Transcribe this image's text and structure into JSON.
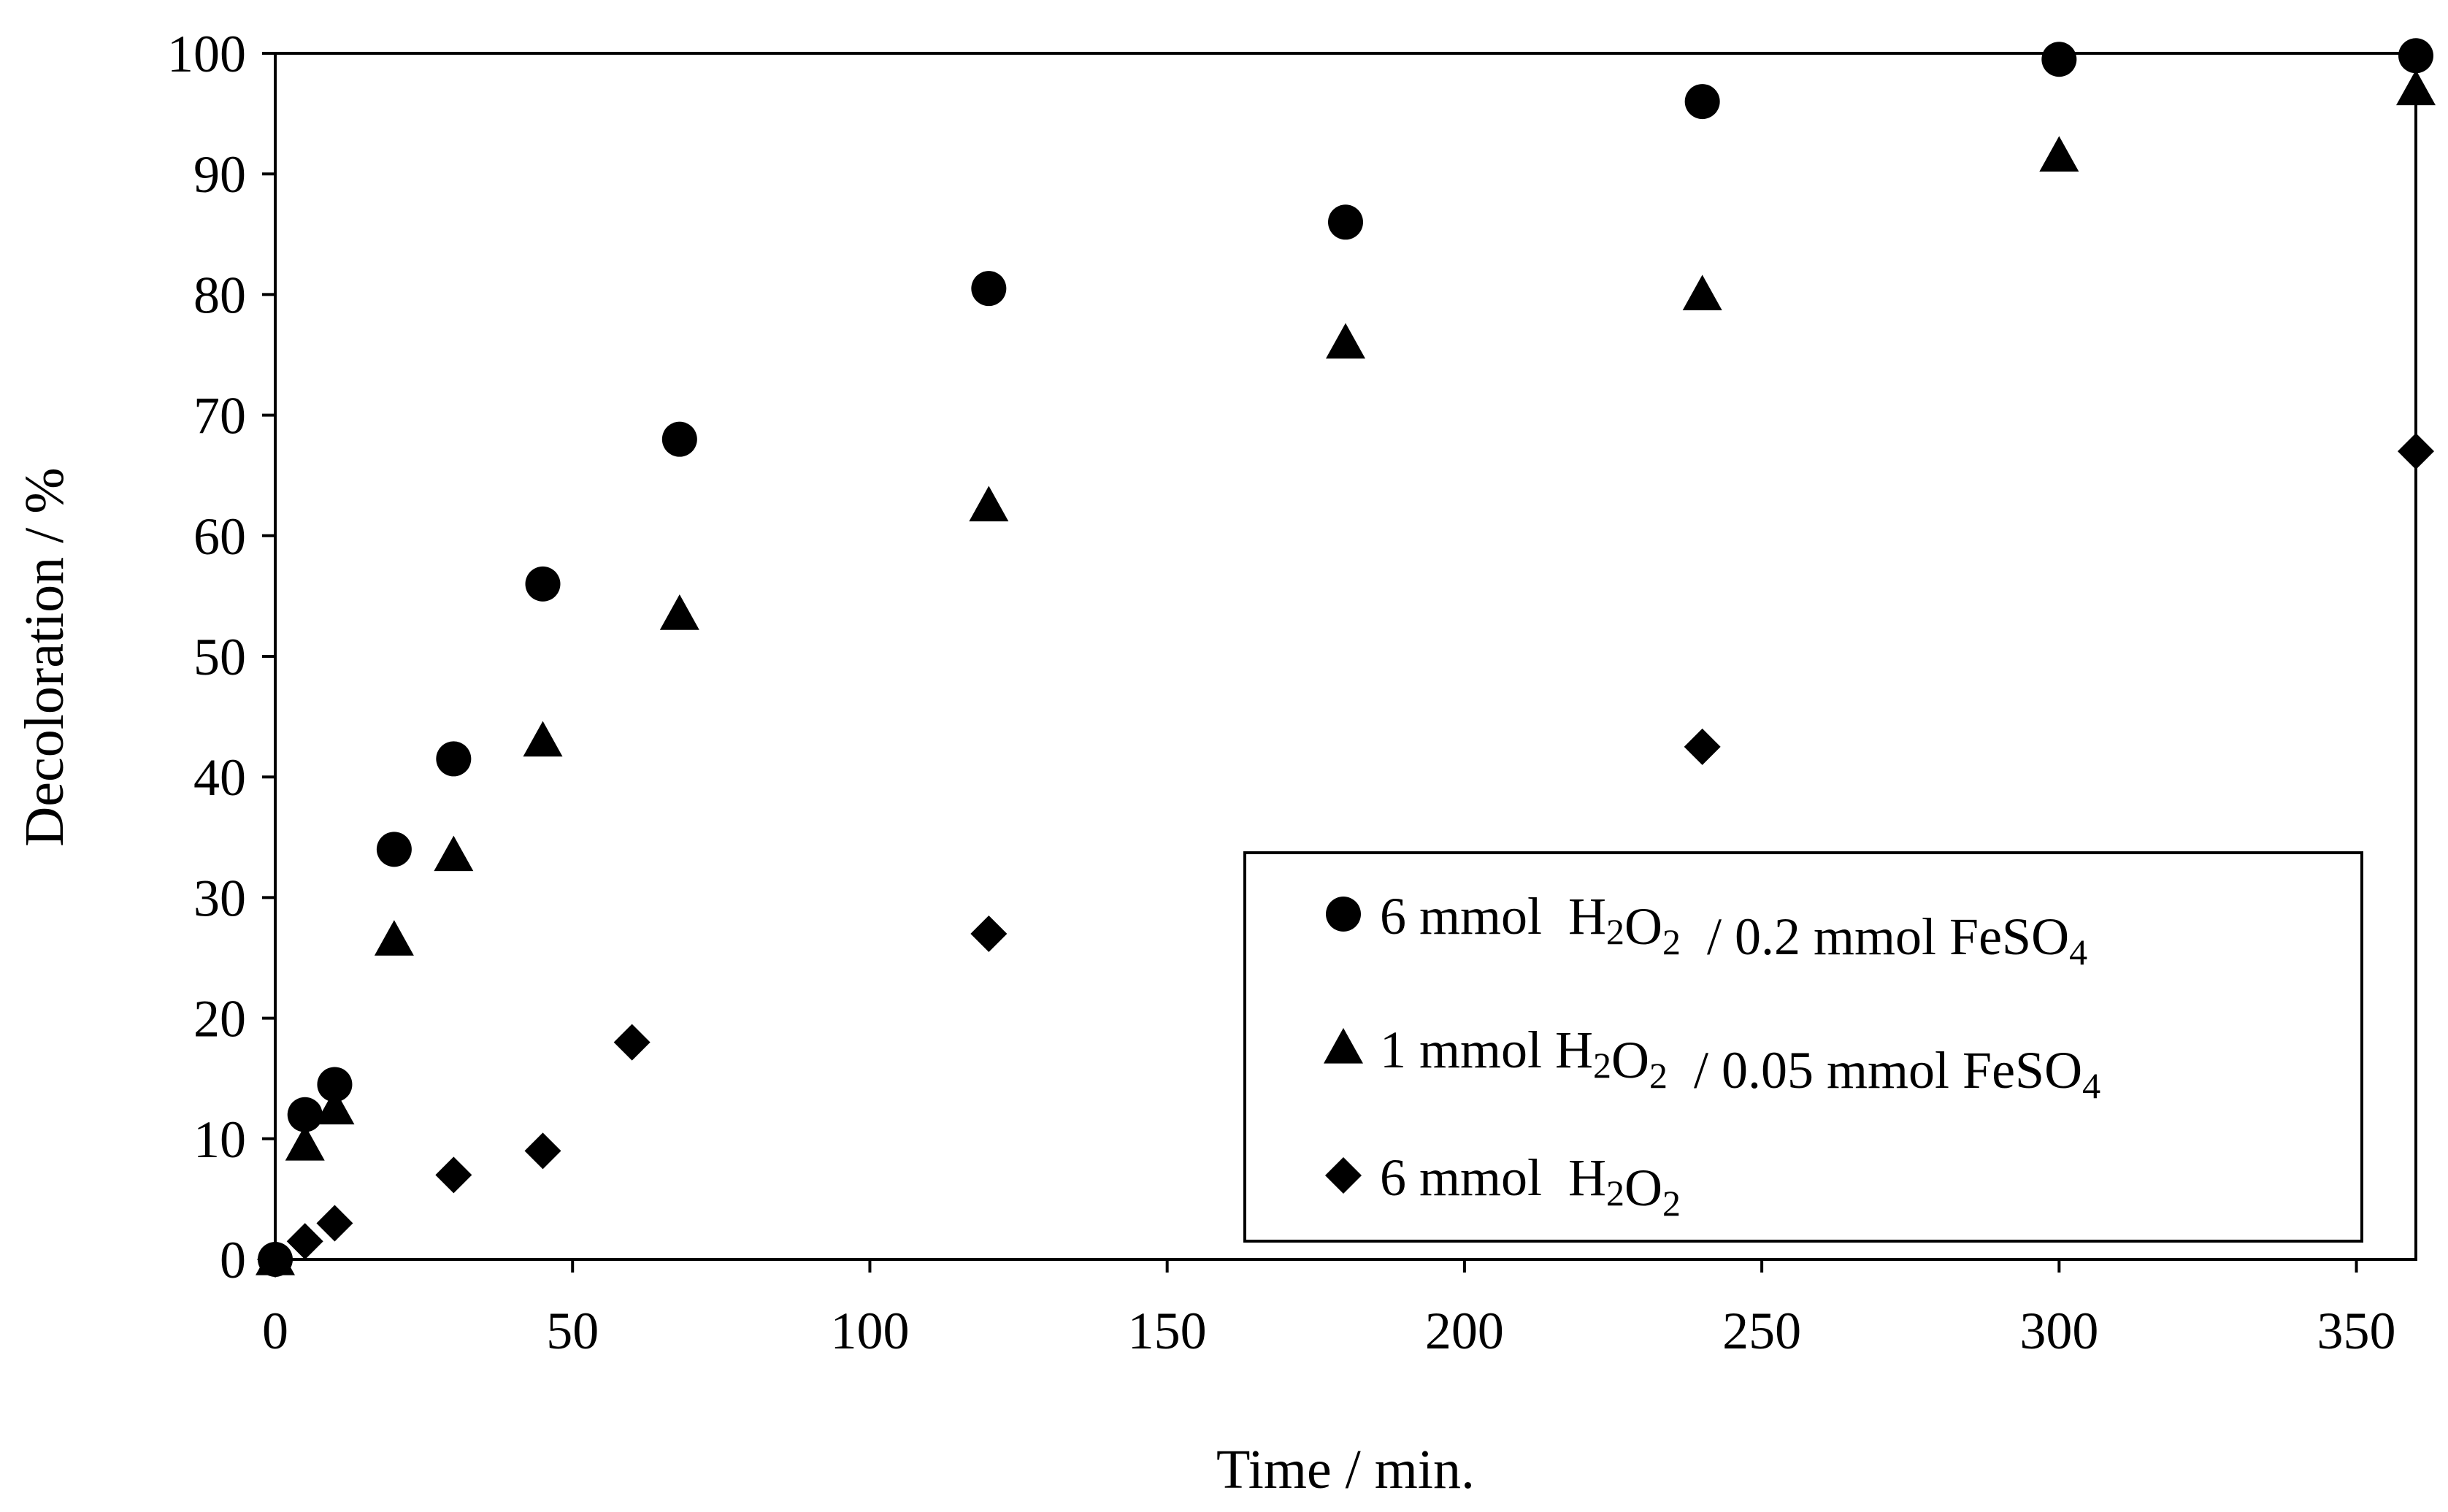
{
  "chart_data": {
    "type": "scatter",
    "title": "",
    "xlabel": "Time / min.",
    "ylabel": "Decoloration / %",
    "xlim": [
      0,
      360
    ],
    "ylim": [
      0,
      100
    ],
    "xticks": [
      0,
      50,
      100,
      150,
      200,
      250,
      300,
      350
    ],
    "yticks": [
      0,
      10,
      20,
      30,
      40,
      50,
      60,
      70,
      80,
      90,
      100
    ],
    "grid": false,
    "legend_position": "bottom-right",
    "series": [
      {
        "name": "6 mmol H2O2 / 0.2 mmol FeSO4",
        "legend_parts": [
          {
            "t": "6 mmol  H"
          },
          {
            "t": "2",
            "sub": true
          },
          {
            "t": "O"
          },
          {
            "t": "2",
            "sub": true
          },
          {
            "t": "  / 0.2 mmol FeSO"
          },
          {
            "t": "4",
            "sub": true
          }
        ],
        "marker": "circle",
        "color": "#000000",
        "x": [
          0,
          5,
          10,
          20,
          30,
          45,
          68,
          120,
          180,
          240,
          300,
          360
        ],
        "y": [
          0,
          12,
          14.5,
          34,
          41.5,
          56,
          68,
          80.5,
          86,
          96,
          99.5,
          99.8
        ]
      },
      {
        "name": "1 mmol H2O2 / 0.05 mmol FeSO4",
        "legend_parts": [
          {
            "t": "1 mmol H"
          },
          {
            "t": "2",
            "sub": true
          },
          {
            "t": "O"
          },
          {
            "t": "2",
            "sub": true
          },
          {
            "t": "  / 0.05 mmol FeSO"
          },
          {
            "t": "4",
            "sub": true
          }
        ],
        "marker": "triangle",
        "color": "#000000",
        "x": [
          0,
          5,
          10,
          20,
          30,
          45,
          68,
          120,
          180,
          240,
          300,
          360
        ],
        "y": [
          0,
          9.5,
          12.5,
          26.5,
          33.5,
          43,
          53.5,
          62.5,
          76,
          80,
          91.5,
          97
        ]
      },
      {
        "name": "6 mmol H2O2",
        "legend_parts": [
          {
            "t": "6 mmol  H"
          },
          {
            "t": "2",
            "sub": true
          },
          {
            "t": "O"
          },
          {
            "t": "2",
            "sub": true
          }
        ],
        "marker": "diamond",
        "color": "#000000",
        "x": [
          0,
          5,
          10,
          30,
          45,
          60,
          120,
          240,
          360
        ],
        "y": [
          0,
          1.5,
          3,
          7,
          9,
          18,
          27,
          42.5,
          67
        ]
      }
    ]
  }
}
